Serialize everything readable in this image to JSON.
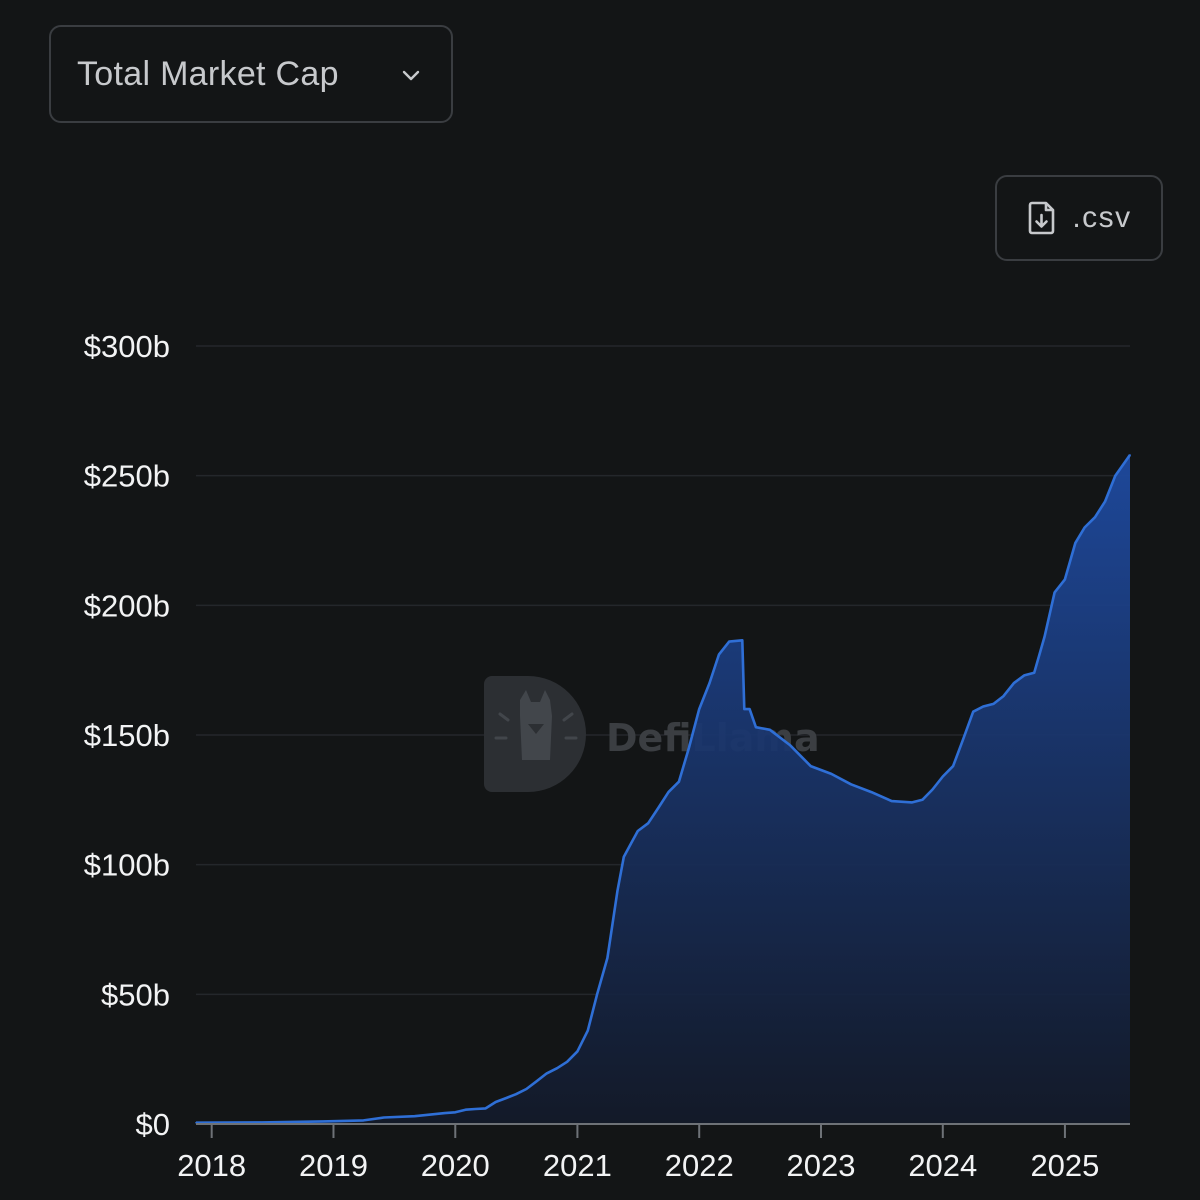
{
  "selector": {
    "label": "Total Market Cap",
    "icon": "chevron-down-icon"
  },
  "csv_button": {
    "label": ".csv",
    "icon": "file-download-icon"
  },
  "watermark": {
    "text": "DefiLlama"
  },
  "colors": {
    "background": "#131516",
    "line": "#2f6fd6",
    "fill_top": "#1e4aa0",
    "fill_bottom": "#131a2a",
    "grid": "#24272b",
    "border": "#3a3d41"
  },
  "chart_data": {
    "type": "area",
    "title": "",
    "xlabel": "",
    "ylabel": "",
    "ylim": [
      0,
      300
    ],
    "xlim": [
      "2017-11-15",
      "2025-07-15"
    ],
    "y_ticks": [
      {
        "value": 0,
        "label": "$0"
      },
      {
        "value": 50,
        "label": "$50b"
      },
      {
        "value": 100,
        "label": "$100b"
      },
      {
        "value": 150,
        "label": "$150b"
      },
      {
        "value": 200,
        "label": "$200b"
      },
      {
        "value": 250,
        "label": "$250b"
      },
      {
        "value": 300,
        "label": "$300b"
      }
    ],
    "x_ticks": [
      {
        "date": "2018-01-01",
        "label": "2018"
      },
      {
        "date": "2019-01-01",
        "label": "2019"
      },
      {
        "date": "2020-01-01",
        "label": "2020"
      },
      {
        "date": "2021-01-01",
        "label": "2021"
      },
      {
        "date": "2022-01-01",
        "label": "2022"
      },
      {
        "date": "2023-01-01",
        "label": "2023"
      },
      {
        "date": "2024-01-01",
        "label": "2024"
      },
      {
        "date": "2025-01-01",
        "label": "2025"
      }
    ],
    "grid": true,
    "series": [
      {
        "values_unit": "billion USD",
        "points": [
          [
            "2017-11-15",
            0.5
          ],
          [
            "2018-06-01",
            0.6
          ],
          [
            "2018-12-01",
            1.0
          ],
          [
            "2019-04-01",
            1.4
          ],
          [
            "2019-06-01",
            2.5
          ],
          [
            "2019-09-01",
            3.0
          ],
          [
            "2019-12-01",
            4.2
          ],
          [
            "2020-01-01",
            4.5
          ],
          [
            "2020-02-01",
            5.5
          ],
          [
            "2020-03-01",
            5.8
          ],
          [
            "2020-04-01",
            6.0
          ],
          [
            "2020-05-01",
            8.5
          ],
          [
            "2020-06-01",
            10.0
          ],
          [
            "2020-07-01",
            11.5
          ],
          [
            "2020-08-01",
            13.5
          ],
          [
            "2020-09-01",
            16.5
          ],
          [
            "2020-10-01",
            19.5
          ],
          [
            "2020-11-01",
            21.5
          ],
          [
            "2020-12-01",
            24.0
          ],
          [
            "2021-01-01",
            28.0
          ],
          [
            "2021-02-01",
            36.0
          ],
          [
            "2021-03-01",
            50.0
          ],
          [
            "2021-04-01",
            64.0
          ],
          [
            "2021-05-01",
            90.0
          ],
          [
            "2021-05-20",
            103.0
          ],
          [
            "2021-06-10",
            108.0
          ],
          [
            "2021-07-01",
            113.0
          ],
          [
            "2021-08-01",
            116.0
          ],
          [
            "2021-09-01",
            122.0
          ],
          [
            "2021-10-01",
            128.0
          ],
          [
            "2021-11-01",
            132.0
          ],
          [
            "2021-12-01",
            145.0
          ],
          [
            "2022-01-01",
            160.0
          ],
          [
            "2022-02-01",
            170.0
          ],
          [
            "2022-03-01",
            181.0
          ],
          [
            "2022-04-01",
            186.0
          ],
          [
            "2022-05-10",
            186.5
          ],
          [
            "2022-05-16",
            160.0
          ],
          [
            "2022-06-01",
            160.0
          ],
          [
            "2022-06-20",
            153.0
          ],
          [
            "2022-08-01",
            152.0
          ],
          [
            "2022-10-01",
            146.0
          ],
          [
            "2022-12-01",
            138.0
          ],
          [
            "2023-02-01",
            135.0
          ],
          [
            "2023-04-01",
            131.0
          ],
          [
            "2023-06-01",
            128.0
          ],
          [
            "2023-08-01",
            124.5
          ],
          [
            "2023-10-01",
            124.0
          ],
          [
            "2023-11-01",
            125.0
          ],
          [
            "2023-12-01",
            129.0
          ],
          [
            "2024-01-01",
            134.0
          ],
          [
            "2024-02-01",
            138.0
          ],
          [
            "2024-03-01",
            148.0
          ],
          [
            "2024-04-01",
            159.0
          ],
          [
            "2024-05-01",
            161.0
          ],
          [
            "2024-06-01",
            162.0
          ],
          [
            "2024-07-01",
            165.0
          ],
          [
            "2024-08-01",
            170.0
          ],
          [
            "2024-09-01",
            173.0
          ],
          [
            "2024-10-01",
            174.0
          ],
          [
            "2024-11-01",
            188.0
          ],
          [
            "2024-12-01",
            205.0
          ],
          [
            "2025-01-01",
            210.0
          ],
          [
            "2025-02-01",
            224.0
          ],
          [
            "2025-03-01",
            230.0
          ],
          [
            "2025-04-01",
            234.0
          ],
          [
            "2025-05-01",
            240.0
          ],
          [
            "2025-06-01",
            250.0
          ],
          [
            "2025-07-15",
            258.0
          ]
        ]
      }
    ]
  }
}
